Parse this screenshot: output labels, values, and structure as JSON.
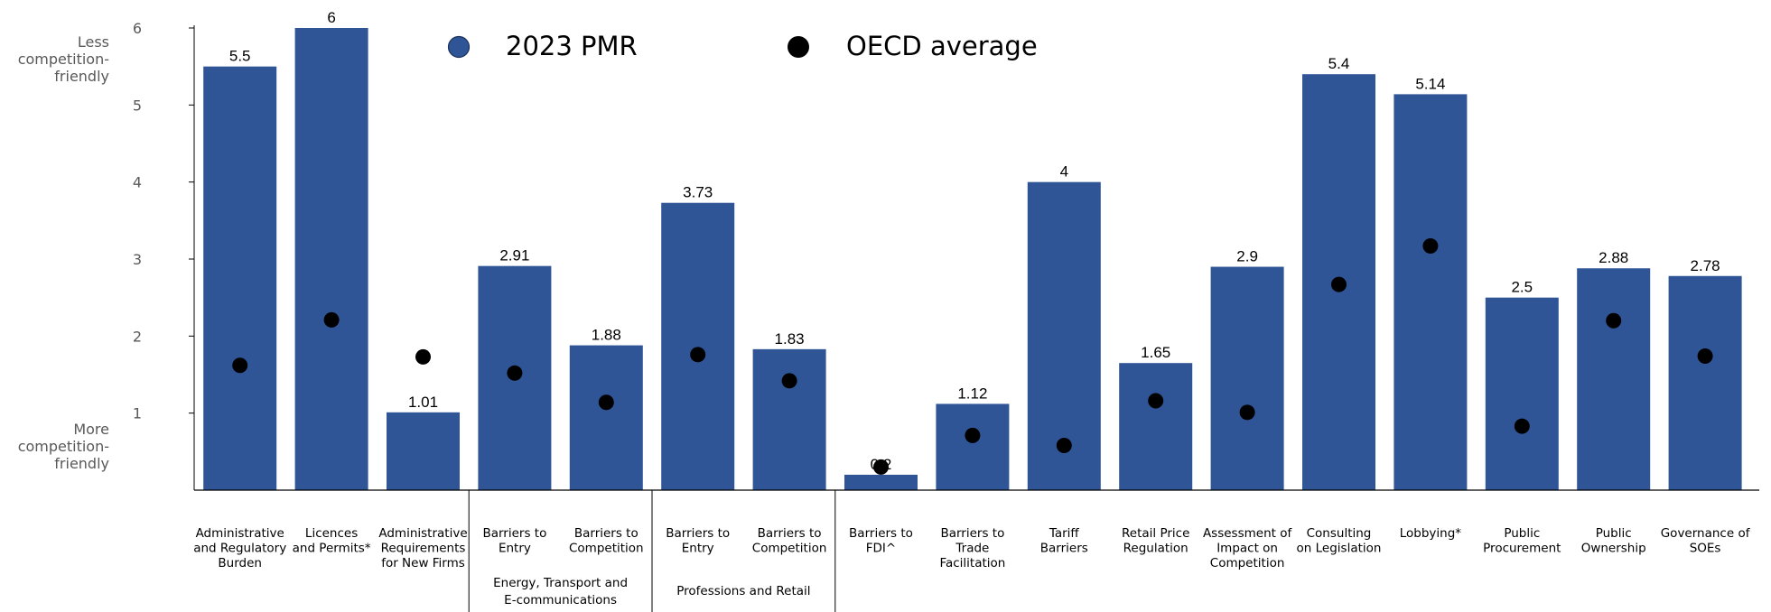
{
  "chart_data": {
    "type": "bar",
    "categories": [
      [
        "Administrative",
        "and Regulatory",
        "Burden"
      ],
      [
        "Licences",
        "and Permits*"
      ],
      [
        "Administrative",
        "Requirements",
        "for New Firms"
      ],
      [
        "Barriers to",
        "Entry"
      ],
      [
        "Barriers to",
        "Competition"
      ],
      [
        "Barriers to",
        "Entry"
      ],
      [
        "Barriers to",
        "Competition"
      ],
      [
        "Barriers to",
        "FDI^"
      ],
      [
        "Barriers to",
        "Trade",
        "Facilitation"
      ],
      [
        "Tariff",
        "Barriers"
      ],
      [
        "Retail Price",
        "Regulation"
      ],
      [
        "Assessment of",
        "Impact on",
        "Competition"
      ],
      [
        "Consulting",
        "on Legislation"
      ],
      [
        "Lobbying*"
      ],
      [
        "Public",
        "Procurement"
      ],
      [
        "Public",
        "Ownership"
      ],
      [
        "Governance of",
        "SOEs"
      ]
    ],
    "series": [
      {
        "name": "2023 PMR",
        "values": [
          5.5,
          6,
          1.01,
          2.91,
          1.88,
          3.73,
          1.83,
          0.2,
          1.12,
          4,
          1.65,
          2.9,
          5.4,
          5.14,
          2.5,
          2.88,
          2.78
        ],
        "labels": [
          "5.5",
          "6",
          "1.01",
          "2.91",
          "1.88",
          "3.73",
          "1.83",
          "0.2",
          "1.12",
          "4",
          "1.65",
          "2.9",
          "5.4",
          "5.14",
          "2.5",
          "2.88",
          "2.78"
        ]
      },
      {
        "name": "OECD average",
        "values": [
          1.62,
          2.21,
          1.73,
          1.52,
          1.14,
          1.76,
          1.42,
          0.3,
          0.71,
          0.58,
          1.16,
          1.01,
          2.67,
          3.17,
          0.83,
          2.2,
          1.74
        ]
      }
    ],
    "groups": [
      {
        "label": [
          "Energy, Transport and",
          "E-communications"
        ],
        "start": 3,
        "end": 4
      },
      {
        "label": [
          "Professions and Retail"
        ],
        "start": 5,
        "end": 6
      }
    ],
    "y_note_top": [
      "Less",
      "competition-",
      "friendly"
    ],
    "y_note_bottom": [
      "More",
      "competition-",
      "friendly"
    ],
    "ylim": [
      0,
      6
    ],
    "yticks": [
      1,
      2,
      3,
      4,
      5,
      6
    ],
    "legend_position": "top-center",
    "colors": {
      "bar": "#2F5597",
      "dot": "#000000",
      "axis": "#000000"
    }
  }
}
